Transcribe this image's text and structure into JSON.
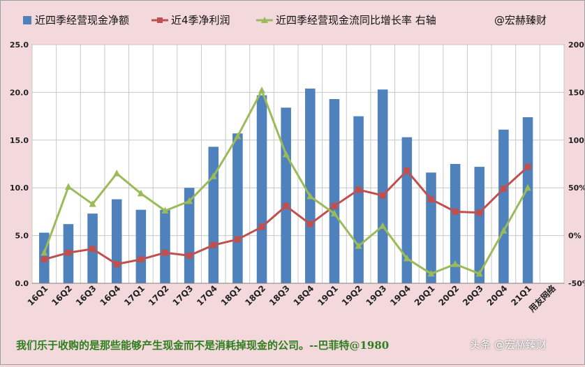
{
  "chart_data": {
    "type": "bar+line",
    "categories": [
      "16Q1",
      "16Q2",
      "16Q3",
      "16Q4",
      "17Q1",
      "17Q2",
      "17Q3",
      "17Q4",
      "18Q1",
      "18Q2",
      "18Q3",
      "18Q4",
      "19Q1",
      "19Q2",
      "19Q3",
      "19Q4",
      "20Q1",
      "20Q2",
      "20Q3",
      "20Q4",
      "21Q1"
    ],
    "extra_category_label": "用友网络",
    "series": [
      {
        "name": "近四季经营现金净额",
        "type": "bar",
        "axis": "left",
        "color": "#4f81bd",
        "values": [
          5.3,
          6.2,
          7.3,
          8.8,
          7.7,
          7.7,
          10.0,
          14.3,
          15.7,
          19.7,
          18.4,
          20.4,
          19.3,
          17.5,
          20.3,
          15.3,
          11.6,
          12.5,
          12.2,
          16.1,
          17.4
        ]
      },
      {
        "name": "近4季净利润",
        "type": "line",
        "axis": "left",
        "color": "#c0504d",
        "values": [
          2.5,
          3.2,
          3.6,
          2.0,
          2.5,
          3.2,
          2.9,
          4.0,
          4.6,
          5.9,
          8.1,
          6.2,
          8.1,
          9.8,
          9.2,
          11.8,
          8.8,
          7.5,
          7.4,
          9.9,
          12.2
        ]
      },
      {
        "name": "近四季经营现金流同比增长率 右轴",
        "type": "line",
        "axis": "right",
        "color": "#9bbb59",
        "values": [
          -18,
          51,
          33,
          65,
          44,
          26,
          36,
          62,
          104,
          152,
          85,
          41,
          23,
          -11,
          10,
          -24,
          -40,
          -30,
          -40,
          5,
          50
        ]
      }
    ],
    "y_left": {
      "min": 0,
      "max": 25,
      "ticks": [
        "0.0",
        "5.0",
        "10.0",
        "15.0",
        "20.0",
        "25.0"
      ]
    },
    "y_right": {
      "min": -50,
      "max": 200,
      "ticks": [
        "-50%",
        "0%",
        "50%",
        "100%",
        "150%",
        "200%"
      ]
    },
    "watermark_legend": "@宏赫臻财",
    "grid": true,
    "legend_position": "top"
  },
  "footer": {
    "quote": "我们乐于收购的是那些能够产生现金而不是消耗掉现金的公司。--巴菲特@1980",
    "watermark": "头条 @宏赫臻财"
  }
}
